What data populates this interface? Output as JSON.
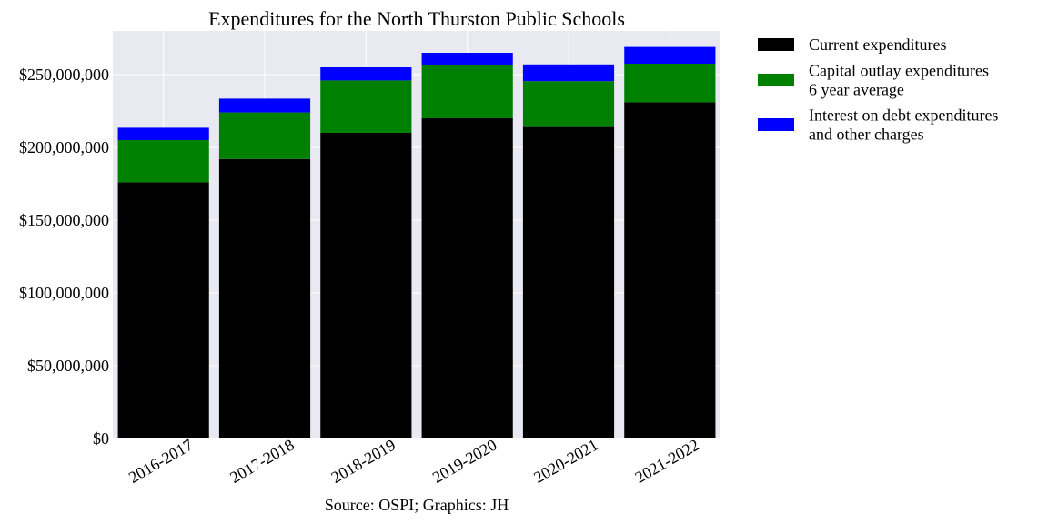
{
  "chart_data": {
    "type": "bar",
    "stacked": true,
    "title": "Expenditures for the North Thurston Public Schools",
    "categories": [
      "2016-2017",
      "2017-2018",
      "2018-2019",
      "2019-2020",
      "2020-2021",
      "2021-2022"
    ],
    "series": [
      {
        "name": "Current expenditures",
        "color": "#000000",
        "values": [
          176000000,
          192000000,
          210000000,
          220000000,
          214000000,
          231000000
        ]
      },
      {
        "name": "Capital outlay expenditures\n6 year average",
        "color": "#008000",
        "values": [
          29000000,
          32000000,
          36000000,
          36500000,
          31500000,
          26500000
        ]
      },
      {
        "name": "Interest on debt expenditures\nand other charges",
        "color": "#0000ff",
        "values": [
          8500000,
          9500000,
          9000000,
          8500000,
          11500000,
          11500000
        ]
      }
    ],
    "ylim": [
      0,
      280000000
    ],
    "yticks": [
      0,
      50000000,
      100000000,
      150000000,
      200000000,
      250000000
    ],
    "ytick_labels": [
      "$0",
      "$50,000,000",
      "$100,000,000",
      "$150,000,000",
      "$200,000,000",
      "$250,000,000"
    ],
    "grid": true,
    "background": "#e9e9f2",
    "legend_position": "outside-right-top",
    "source": "Source: OSPI; Graphics: JH"
  }
}
